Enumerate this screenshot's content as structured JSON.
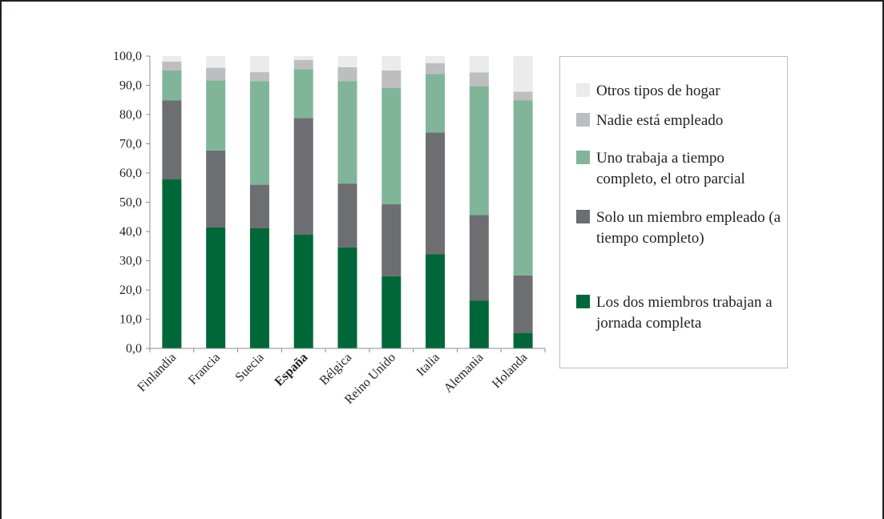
{
  "chart_data": {
    "type": "bar",
    "stacked": true,
    "categories": [
      "Finlandia",
      "Francia",
      "Suecia",
      "España",
      "Bélgica",
      "Reino Unido",
      "Italia",
      "Alemania",
      "Holanda"
    ],
    "highlighted_category": "España",
    "series": [
      {
        "name": "Los dos miembros trabajan a jornada completa",
        "color": "#006838",
        "values": [
          57.8,
          41.4,
          41.1,
          39.0,
          34.6,
          24.7,
          32.2,
          16.3,
          5.2
        ]
      },
      {
        "name": "Solo un miembro empleado (a tiempo completo)",
        "color": "#6d6e71",
        "values": [
          27.0,
          26.3,
          14.9,
          39.8,
          21.8,
          24.6,
          41.7,
          29.3,
          19.8
        ]
      },
      {
        "name": "Uno trabaja a tiempo completo, el otro parcial",
        "color": "#80b59a",
        "values": [
          10.3,
          24.0,
          35.4,
          16.7,
          35.0,
          39.8,
          20.0,
          44.1,
          59.9
        ]
      },
      {
        "name": "Nadie está empleado",
        "color": "#bcbec0",
        "values": [
          3.0,
          4.3,
          3.1,
          3.2,
          4.8,
          6.0,
          3.7,
          4.7,
          2.9
        ]
      },
      {
        "name": "Otros tipos de hogar",
        "color": "#ebebec",
        "values": [
          1.9,
          4.0,
          5.5,
          1.3,
          3.8,
          4.9,
          2.4,
          5.6,
          12.2
        ]
      }
    ],
    "ylim": [
      0,
      100
    ],
    "ytick_step": 10,
    "ytick_labels": [
      "0,0",
      "10,0",
      "20,0",
      "30,0",
      "40,0",
      "50,0",
      "60,0",
      "70,0",
      "80,0",
      "90,0",
      "100,0"
    ],
    "grid": false,
    "legend_position": "right"
  },
  "legend": {
    "items": [
      {
        "label": "Otros tipos de hogar",
        "color": "#ebebec"
      },
      {
        "label": "Nadie está empleado",
        "color": "#bcbec0"
      },
      {
        "label": "Uno trabaja a tiempo completo, el otro parcial",
        "color": "#80b59a"
      },
      {
        "label": "Solo un miembro empleado (a tiempo completo)",
        "color": "#6d6e71"
      },
      {
        "label": "Los dos miembros trabajan a jornada completa",
        "color": "#006838"
      }
    ]
  }
}
